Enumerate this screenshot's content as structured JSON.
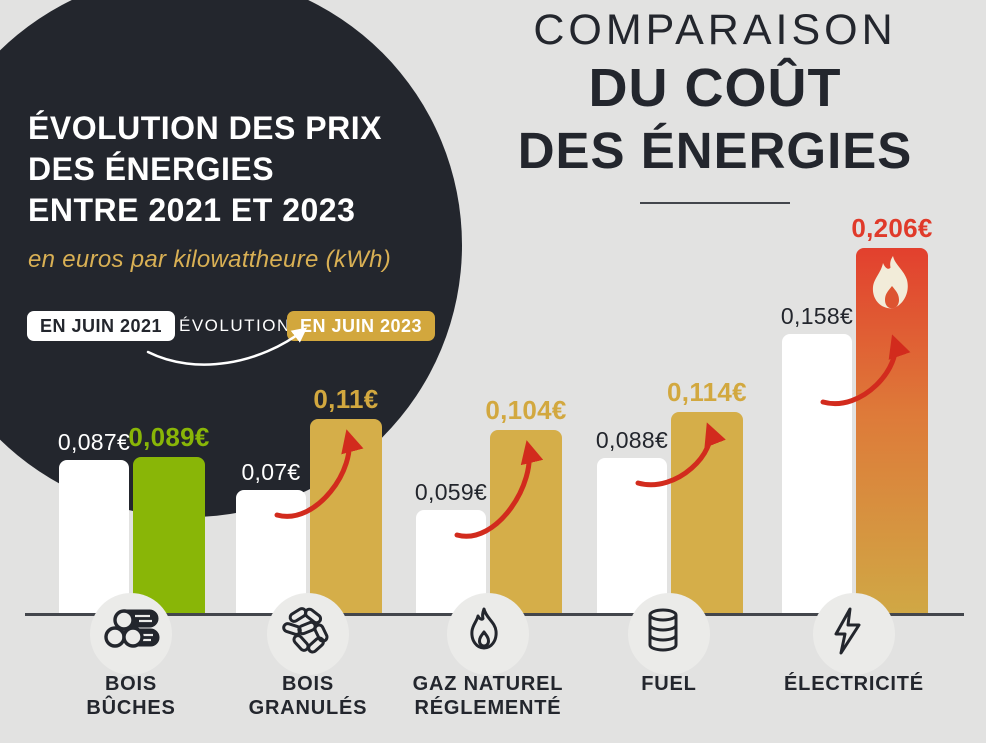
{
  "left_panel": {
    "title_lines": [
      "ÉVOLUTION DES PRIX",
      "DES ÉNERGIES",
      "ENTRE 2021 ET 2023"
    ],
    "subtitle": "en euros par kilowattheure (kWh)",
    "legend": {
      "badge_2021": "EN JUIN 2021",
      "evolution_label": "ÉVOLUTION",
      "badge_2023": "EN JUIN 2023"
    }
  },
  "right_title": {
    "line1": "COMPARAISON",
    "line2": "DU COÛT",
    "line3": "DES ÉNERGIES"
  },
  "chart_data": {
    "type": "bar",
    "unit": "euros par kilowattheure (kWh)",
    "categories": [
      "BOIS BÛCHES",
      "BOIS GRANULÉS",
      "GAZ NATUREL RÉGLEMENTÉ",
      "FUEL",
      "ÉLECTRICITÉ"
    ],
    "category_lines": [
      [
        "BOIS",
        "BÛCHES"
      ],
      [
        "BOIS",
        "GRANULÉS"
      ],
      [
        "GAZ NATUREL",
        "RÉGLEMENTÉ"
      ],
      [
        "FUEL"
      ],
      [
        "ÉLECTRICITÉ"
      ]
    ],
    "icons": [
      "logs-icon",
      "pellets-icon",
      "gas-flame-icon",
      "fuel-barrel-icon",
      "lightning-icon"
    ],
    "series": [
      {
        "name": "EN JUIN 2021",
        "values": [
          0.087,
          0.07,
          0.059,
          0.088,
          0.158
        ],
        "labels": [
          "0,087€",
          "0,07€",
          "0,059€",
          "0,088€",
          "0,158€"
        ]
      },
      {
        "name": "EN JUIN 2023",
        "values": [
          0.089,
          0.11,
          0.104,
          0.114,
          0.206
        ],
        "labels": [
          "0,089€",
          "0,11€",
          "0,104€",
          "0,114€",
          "0,206€"
        ]
      }
    ],
    "ylim": [
      0,
      0.22
    ],
    "grid": false,
    "legend_position": "top-left",
    "colors": {
      "background": "#e2e2e1",
      "dark_circle": "#23262d",
      "bar_2021": "#ffffff",
      "bar_2023": [
        "#89b607",
        "#d5ae49",
        "#d5ae49",
        "#d5ae49",
        "gradient-red-to-gold"
      ],
      "gradient_red_to_gold": [
        "#e2402e",
        "#de7a39",
        "#d0a845"
      ],
      "label_2021": [
        "#ffffff",
        "#ffffff",
        "#23262d",
        "#23262d",
        "#23262d"
      ],
      "label_2023": [
        "#89b607",
        "#d2a83f",
        "#d2a83f",
        "#d2a83f",
        "#e03a2a"
      ],
      "increase_arrow": "#d22b1d",
      "gold_badge": "#d2a73d",
      "text_dark": "#23262d",
      "axis_line": "#43464c",
      "flame_cream": "#f2ecd9"
    }
  }
}
